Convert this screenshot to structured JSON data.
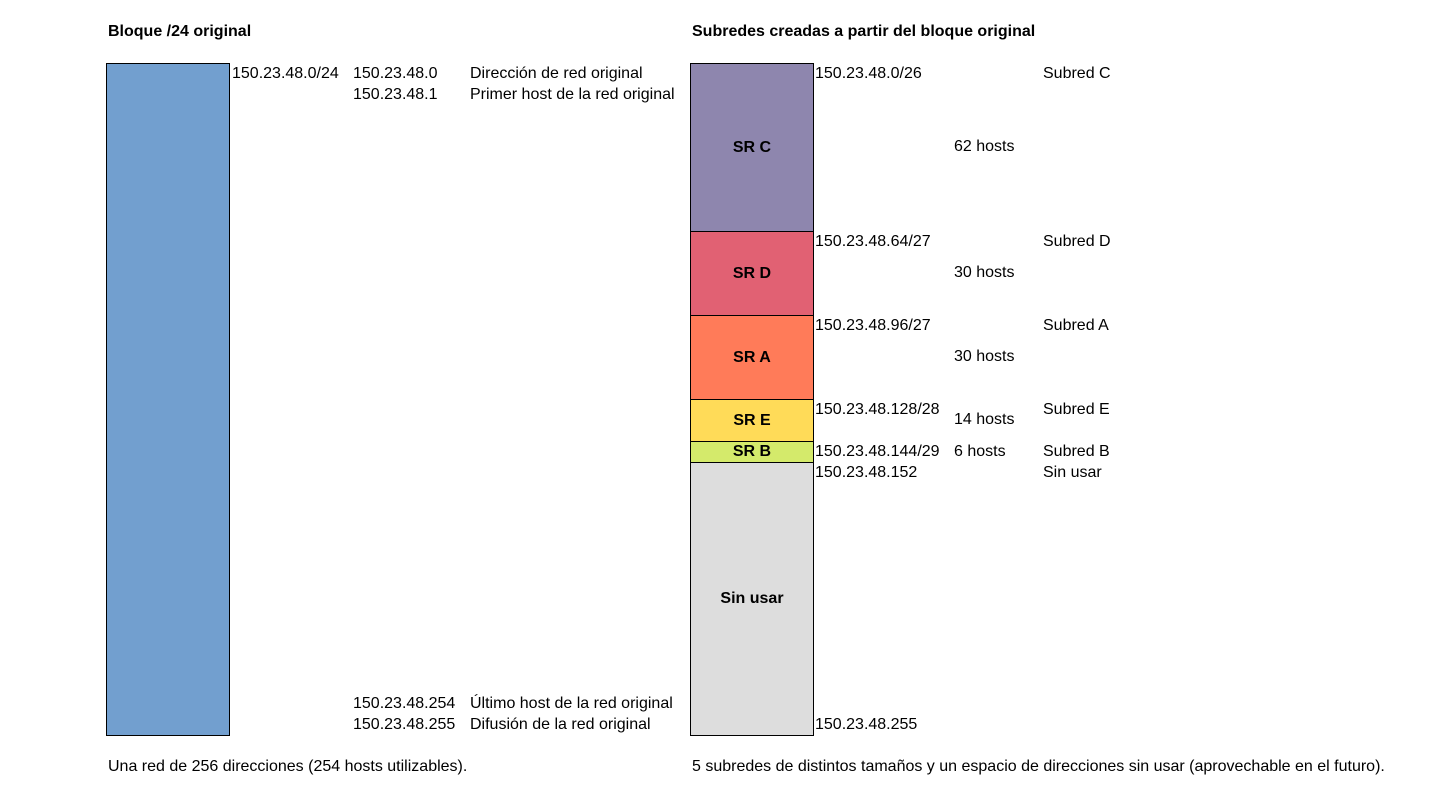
{
  "left": {
    "title": "Bloque /24 original",
    "block_color": "#729fcf",
    "cidr": "150.23.48.0/24",
    "rows": [
      {
        "address": "150.23.48.0",
        "description": "Dirección de red original"
      },
      {
        "address": "150.23.48.1",
        "description": "Primer host de la red original"
      },
      {
        "address": "150.23.48.254",
        "description": "Último host de la red original"
      },
      {
        "address": "150.23.48.255",
        "description": "Difusión de la red original"
      }
    ],
    "footer": "Una red de 256 direcciones (254 hosts utilizables)."
  },
  "right": {
    "title": "Subredes creadas a partir del bloque original",
    "subnets": [
      {
        "label": "SR C",
        "network": "150.23.48.0/26",
        "hosts": "62 hosts",
        "name": "Subred C",
        "color": "#8e86ae"
      },
      {
        "label": "SR D",
        "network": "150.23.48.64/27",
        "hosts": "30 hosts",
        "name": "Subred D",
        "color": "#e16173"
      },
      {
        "label": "SR A",
        "network": "150.23.48.96/27",
        "hosts": "30 hosts",
        "name": "Subred A",
        "color": "#ff7b59"
      },
      {
        "label": "SR E",
        "network": "150.23.48.128/28",
        "hosts": "14 hosts",
        "name": "Subred E",
        "color": "#ffdb58"
      },
      {
        "label": "SR B",
        "network": "150.23.48.144/29",
        "hosts": "6 hosts",
        "name": "Subred B",
        "color": "#d4ea6b"
      }
    ],
    "unused": {
      "label": "Sin usar",
      "start": "150.23.48.152",
      "end": "150.23.48.255",
      "name": "Sin usar",
      "color": "#dddddd"
    },
    "footer": "5 subredes de distintos tamaños y un espacio de direcciones sin usar (aprovechable en el futuro)."
  }
}
